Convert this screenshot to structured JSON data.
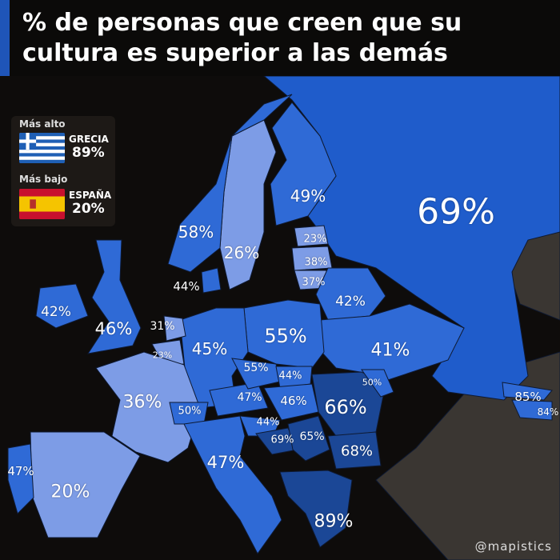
{
  "title": "% de personas que creen que su cultura es superior a las demás",
  "legend": {
    "highest_heading": "Más alto",
    "highest_country": "GRECIA",
    "highest_value": "89%",
    "lowest_heading": "Más bajo",
    "lowest_country": "ESPAÑA",
    "lowest_value": "20%"
  },
  "colors": {
    "light": "#7d9ce6",
    "mid": "#2f6ad6",
    "russia": "#1f5ccb",
    "dark": "#1b4796",
    "nodata": "#3a3632",
    "background": "#0e0c0b"
  },
  "regions": [
    {
      "value": "69%"
    },
    {
      "value": "49%"
    },
    {
      "value": "26%"
    },
    {
      "value": "58%"
    },
    {
      "value": "44%"
    },
    {
      "value": "23%"
    },
    {
      "value": "38%"
    },
    {
      "value": "37%"
    },
    {
      "value": "42%"
    },
    {
      "value": "41%"
    },
    {
      "value": "55%"
    },
    {
      "value": "45%"
    },
    {
      "value": "31%"
    },
    {
      "value": "23%"
    },
    {
      "value": "36%"
    },
    {
      "value": "50%"
    },
    {
      "value": "47%"
    },
    {
      "value": "55%"
    },
    {
      "value": "44%"
    },
    {
      "value": "46%"
    },
    {
      "value": "66%"
    },
    {
      "value": "50%"
    },
    {
      "value": "44%"
    },
    {
      "value": "69%"
    },
    {
      "value": "65%"
    },
    {
      "value": "68%"
    },
    {
      "value": "89%"
    },
    {
      "value": "47%"
    },
    {
      "value": "20%"
    },
    {
      "value": "47%"
    },
    {
      "value": "46%"
    },
    {
      "value": "42%"
    },
    {
      "value": "85%"
    },
    {
      "value": "84%"
    }
  ],
  "credit": "@mapistics"
}
